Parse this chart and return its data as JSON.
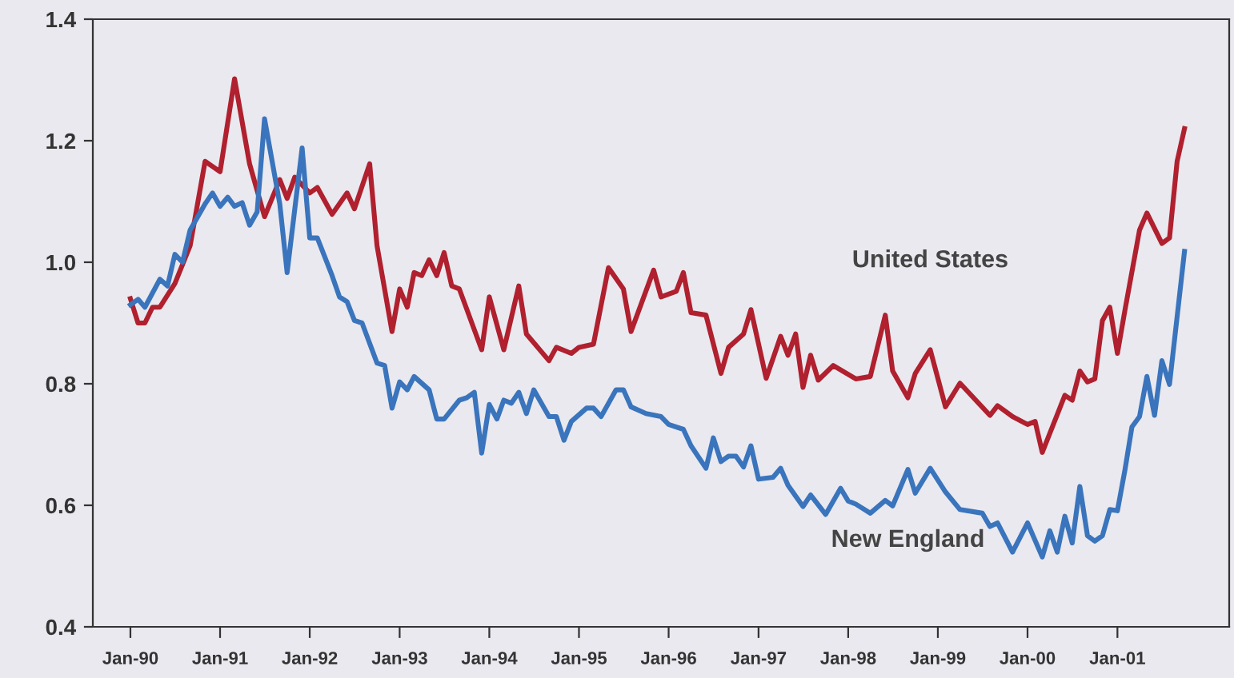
{
  "chart_data": {
    "type": "line",
    "xlim": [
      "1989-08",
      "2002-04"
    ],
    "ylim": [
      0.4,
      1.4
    ],
    "xticks": [
      {
        "value": "1990-01",
        "label": "Jan-90"
      },
      {
        "value": "1991-01",
        "label": "Jan-91"
      },
      {
        "value": "1992-01",
        "label": "Jan-92"
      },
      {
        "value": "1993-01",
        "label": "Jan-93"
      },
      {
        "value": "1994-01",
        "label": "Jan-94"
      },
      {
        "value": "1995-01",
        "label": "Jan-95"
      },
      {
        "value": "1996-01",
        "label": "Jan-96"
      },
      {
        "value": "1997-01",
        "label": "Jan-97"
      },
      {
        "value": "1998-01",
        "label": "Jan-98"
      },
      {
        "value": "1999-01",
        "label": "Jan-99"
      },
      {
        "value": "2000-01",
        "label": "Jan-00"
      },
      {
        "value": "2001-01",
        "label": "Jan-01"
      }
    ],
    "yticks": [
      0.4,
      0.6,
      0.8,
      {
        "value": 1,
        "label": "1.0"
      },
      1.2,
      1.4
    ],
    "grid": false,
    "legend": false,
    "marker": "none",
    "line_style": "solid",
    "series": [
      {
        "name": "United States",
        "color": "#b0202e",
        "x": [
          "1990-01",
          "1990-02",
          "1990-03",
          "1990-04",
          "1990-05",
          "1990-07",
          "1990-09",
          "1990-11",
          "1991-01",
          "1991-03",
          "1991-05",
          "1991-07",
          "1991-09",
          "1991-10",
          "1991-11",
          "1992-01",
          "1992-02",
          "1992-04",
          "1992-06",
          "1992-07",
          "1992-09",
          "1992-10",
          "1992-12",
          "1993-01",
          "1993-02",
          "1993-03",
          "1993-04",
          "1993-05",
          "1993-06",
          "1993-07",
          "1993-08",
          "1993-09",
          "1993-12",
          "1994-01",
          "1994-03",
          "1994-05",
          "1994-06",
          "1994-09",
          "1994-10",
          "1994-12",
          "1995-01",
          "1995-03",
          "1995-05",
          "1995-07",
          "1995-08",
          "1995-11",
          "1995-12",
          "1996-02",
          "1996-03",
          "1996-04",
          "1996-06",
          "1996-08",
          "1996-09",
          "1996-11",
          "1996-12",
          "1997-02",
          "1997-04",
          "1997-05",
          "1997-06",
          "1997-07",
          "1997-08",
          "1997-09",
          "1997-11",
          "1998-02",
          "1998-04",
          "1998-06",
          "1998-07",
          "1998-09",
          "1998-10",
          "1998-12",
          "1999-02",
          "1999-04",
          "1999-08",
          "1999-09",
          "1999-11",
          "2000-01",
          "2000-02",
          "2000-03",
          "2000-06",
          "2000-07",
          "2000-08",
          "2000-09",
          "2000-10",
          "2000-11",
          "2000-12",
          "2001-01",
          "2001-02",
          "2001-04",
          "2001-05",
          "2001-07",
          "2001-08",
          "2001-09",
          "2001-10"
        ],
        "values": [
          0.94,
          0.9,
          0.9,
          0.926,
          0.926,
          0.965,
          1.027,
          1.166,
          1.149,
          1.302,
          1.162,
          1.075,
          1.136,
          1.105,
          1.14,
          1.114,
          1.123,
          1.079,
          1.114,
          1.088,
          1.162,
          1.027,
          0.886,
          0.956,
          0.926,
          0.983,
          0.978,
          1.004,
          0.978,
          1.016,
          0.961,
          0.956,
          0.856,
          0.943,
          0.856,
          0.961,
          0.882,
          0.838,
          0.86,
          0.85,
          0.86,
          0.865,
          0.991,
          0.956,
          0.886,
          0.987,
          0.943,
          0.952,
          0.983,
          0.917,
          0.913,
          0.817,
          0.86,
          0.882,
          0.922,
          0.809,
          0.878,
          0.847,
          0.882,
          0.794,
          0.847,
          0.806,
          0.83,
          0.808,
          0.812,
          0.913,
          0.821,
          0.777,
          0.817,
          0.856,
          0.762,
          0.801,
          0.748,
          0.764,
          0.746,
          0.733,
          0.738,
          0.687,
          0.781,
          0.773,
          0.821,
          0.803,
          0.808,
          0.904,
          0.926,
          0.85,
          0.922,
          1.053,
          1.081,
          1.031,
          1.04,
          1.166,
          1.22
        ]
      },
      {
        "name": "New England",
        "color": "#3a74bc",
        "x": [
          "1990-01",
          "1990-02",
          "1990-03",
          "1990-05",
          "1990-06",
          "1990-07",
          "1990-08",
          "1990-09",
          "1990-11",
          "1990-12",
          "1991-01",
          "1991-02",
          "1991-03",
          "1991-04",
          "1991-05",
          "1991-06",
          "1991-07",
          "1991-09",
          "1991-10",
          "1991-12",
          "1992-01",
          "1992-02",
          "1992-04",
          "1992-05",
          "1992-06",
          "1992-07",
          "1992-08",
          "1992-10",
          "1992-11",
          "1992-12",
          "1993-01",
          "1993-02",
          "1993-03",
          "1993-05",
          "1993-06",
          "1993-07",
          "1993-09",
          "1993-10",
          "1993-11",
          "1993-12",
          "1994-01",
          "1994-02",
          "1994-03",
          "1994-04",
          "1994-05",
          "1994-06",
          "1994-07",
          "1994-09",
          "1994-10",
          "1994-11",
          "1994-12",
          "1995-02",
          "1995-03",
          "1995-04",
          "1995-06",
          "1995-07",
          "1995-08",
          "1995-10",
          "1995-12",
          "1996-01",
          "1996-03",
          "1996-04",
          "1996-06",
          "1996-07",
          "1996-08",
          "1996-09",
          "1996-10",
          "1996-11",
          "1996-12",
          "1997-01",
          "1997-03",
          "1997-04",
          "1997-05",
          "1997-07",
          "1997-08",
          "1997-10",
          "1997-12",
          "1998-01",
          "1998-02",
          "1998-04",
          "1998-06",
          "1998-07",
          "1998-09",
          "1998-10",
          "1998-12",
          "1999-02",
          "1999-04",
          "1999-07",
          "1999-08",
          "1999-09",
          "1999-11",
          "2000-01",
          "2000-03",
          "2000-04",
          "2000-05",
          "2000-06",
          "2000-07",
          "2000-08",
          "2000-09",
          "2000-10",
          "2000-11",
          "2000-12",
          "2001-01",
          "2001-02",
          "2001-03",
          "2001-04",
          "2001-05",
          "2001-06",
          "2001-07",
          "2001-08",
          "2001-10"
        ],
        "values": [
          0.93,
          0.939,
          0.926,
          0.972,
          0.961,
          1.013,
          1.0,
          1.053,
          1.096,
          1.114,
          1.092,
          1.107,
          1.092,
          1.098,
          1.061,
          1.083,
          1.236,
          1.096,
          0.983,
          1.188,
          1.04,
          1.04,
          0.978,
          0.943,
          0.935,
          0.904,
          0.9,
          0.834,
          0.83,
          0.76,
          0.803,
          0.79,
          0.812,
          0.79,
          0.742,
          0.742,
          0.773,
          0.777,
          0.786,
          0.686,
          0.766,
          0.742,
          0.773,
          0.768,
          0.786,
          0.751,
          0.79,
          0.746,
          0.746,
          0.707,
          0.738,
          0.76,
          0.76,
          0.746,
          0.79,
          0.79,
          0.762,
          0.751,
          0.746,
          0.733,
          0.725,
          0.698,
          0.661,
          0.711,
          0.672,
          0.681,
          0.681,
          0.663,
          0.698,
          0.643,
          0.646,
          0.661,
          0.633,
          0.598,
          0.617,
          0.585,
          0.628,
          0.607,
          0.602,
          0.587,
          0.608,
          0.599,
          0.659,
          0.62,
          0.661,
          0.622,
          0.593,
          0.587,
          0.565,
          0.571,
          0.523,
          0.571,
          0.515,
          0.558,
          0.523,
          0.582,
          0.538,
          0.631,
          0.55,
          0.541,
          0.55,
          0.593,
          0.591,
          0.659,
          0.729,
          0.746,
          0.812,
          0.748,
          0.838,
          0.799,
          1.018
        ]
      }
    ]
  }
}
